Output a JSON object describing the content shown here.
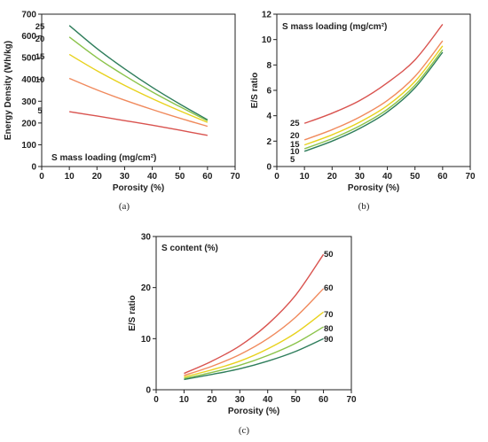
{
  "chart_data": [
    {
      "type": "line",
      "caption": "(a)",
      "xlabel": "Porosity (%)",
      "ylabel": "Energy Density (Wh/kg)",
      "annotation": "S mass loading (mg/cm²)",
      "xlim": [
        0,
        70
      ],
      "ylim": [
        0,
        700
      ],
      "xticks": [
        0,
        10,
        20,
        30,
        40,
        50,
        60,
        70
      ],
      "yticks": [
        0,
        100,
        200,
        300,
        400,
        500,
        600,
        700
      ],
      "grid": false,
      "series": [
        {
          "name": "5",
          "color": "#d9534f",
          "x": [
            10,
            20,
            30,
            40,
            50,
            60
          ],
          "y": [
            252,
            232,
            211,
            190,
            167,
            143
          ]
        },
        {
          "name": "10",
          "color": "#f08a5d",
          "x": [
            10,
            20,
            30,
            40,
            50,
            60
          ],
          "y": [
            405,
            352,
            305,
            262,
            222,
            185
          ]
        },
        {
          "name": "15",
          "color": "#e8d21d",
          "x": [
            10,
            20,
            30,
            40,
            50,
            60
          ],
          "y": [
            515,
            440,
            373,
            312,
            256,
            203
          ]
        },
        {
          "name": "20",
          "color": "#8bc34a",
          "x": [
            10,
            20,
            30,
            40,
            50,
            60
          ],
          "y": [
            595,
            500,
            418,
            343,
            275,
            210
          ]
        },
        {
          "name": "25",
          "color": "#2e7d5b",
          "x": [
            10,
            20,
            30,
            40,
            50,
            60
          ],
          "y": [
            648,
            542,
            449,
            364,
            287,
            215
          ]
        }
      ]
    },
    {
      "type": "line",
      "caption": "(b)",
      "xlabel": "Porosity (%)",
      "ylabel": "E/S ratio",
      "annotation": "S mass loading (mg/cm²)",
      "xlim": [
        0,
        70
      ],
      "ylim": [
        0,
        12
      ],
      "xticks": [
        0,
        10,
        20,
        30,
        40,
        50,
        60,
        70
      ],
      "yticks": [
        0,
        2,
        4,
        6,
        8,
        10,
        12
      ],
      "grid": false,
      "series": [
        {
          "name": "25",
          "color": "#d9534f",
          "x": [
            10,
            20,
            30,
            40,
            50,
            60
          ],
          "y": [
            3.4,
            4.2,
            5.2,
            6.6,
            8.4,
            11.2
          ]
        },
        {
          "name": "20",
          "color": "#f08a5d",
          "x": [
            10,
            20,
            30,
            40,
            50,
            60
          ],
          "y": [
            2.1,
            2.9,
            3.9,
            5.2,
            7.1,
            9.9
          ]
        },
        {
          "name": "15",
          "color": "#e8d21d",
          "x": [
            10,
            20,
            30,
            40,
            50,
            60
          ],
          "y": [
            1.7,
            2.5,
            3.5,
            4.8,
            6.7,
            9.5
          ]
        },
        {
          "name": "10",
          "color": "#8bc34a",
          "x": [
            10,
            20,
            30,
            40,
            50,
            60
          ],
          "y": [
            1.4,
            2.2,
            3.2,
            4.5,
            6.4,
            9.2
          ]
        },
        {
          "name": "5",
          "color": "#2e7d5b",
          "x": [
            10,
            20,
            30,
            40,
            50,
            60
          ],
          "y": [
            1.2,
            2.0,
            3.0,
            4.3,
            6.2,
            9.0
          ]
        }
      ]
    },
    {
      "type": "line",
      "caption": "(c)",
      "xlabel": "Porosity (%)",
      "ylabel": "E/S ratio",
      "annotation": "S content (%)",
      "xlim": [
        0,
        70
      ],
      "ylim": [
        0,
        30
      ],
      "xticks": [
        0,
        10,
        20,
        30,
        40,
        50,
        60,
        70
      ],
      "yticks": [
        0,
        10,
        20,
        30
      ],
      "grid": false,
      "series": [
        {
          "name": "50",
          "color": "#d9534f",
          "x": [
            10,
            20,
            30,
            40,
            50,
            60
          ],
          "y": [
            3.2,
            5.6,
            8.6,
            12.8,
            18.5,
            26.5
          ]
        },
        {
          "name": "60",
          "color": "#f08a5d",
          "x": [
            10,
            20,
            30,
            40,
            50,
            60
          ],
          "y": [
            2.8,
            4.6,
            6.9,
            10.0,
            14.2,
            19.8
          ]
        },
        {
          "name": "70",
          "color": "#e8d21d",
          "x": [
            10,
            20,
            30,
            40,
            50,
            60
          ],
          "y": [
            2.5,
            3.9,
            5.6,
            8.0,
            11.1,
            15.2
          ]
        },
        {
          "name": "80",
          "color": "#8bc34a",
          "x": [
            10,
            20,
            30,
            40,
            50,
            60
          ],
          "y": [
            2.2,
            3.4,
            4.8,
            6.7,
            9.1,
            12.3
          ]
        },
        {
          "name": "90",
          "color": "#2e7d5b",
          "x": [
            10,
            20,
            30,
            40,
            50,
            60
          ],
          "y": [
            2.0,
            3.0,
            4.1,
            5.6,
            7.5,
            10.0
          ]
        }
      ]
    }
  ]
}
